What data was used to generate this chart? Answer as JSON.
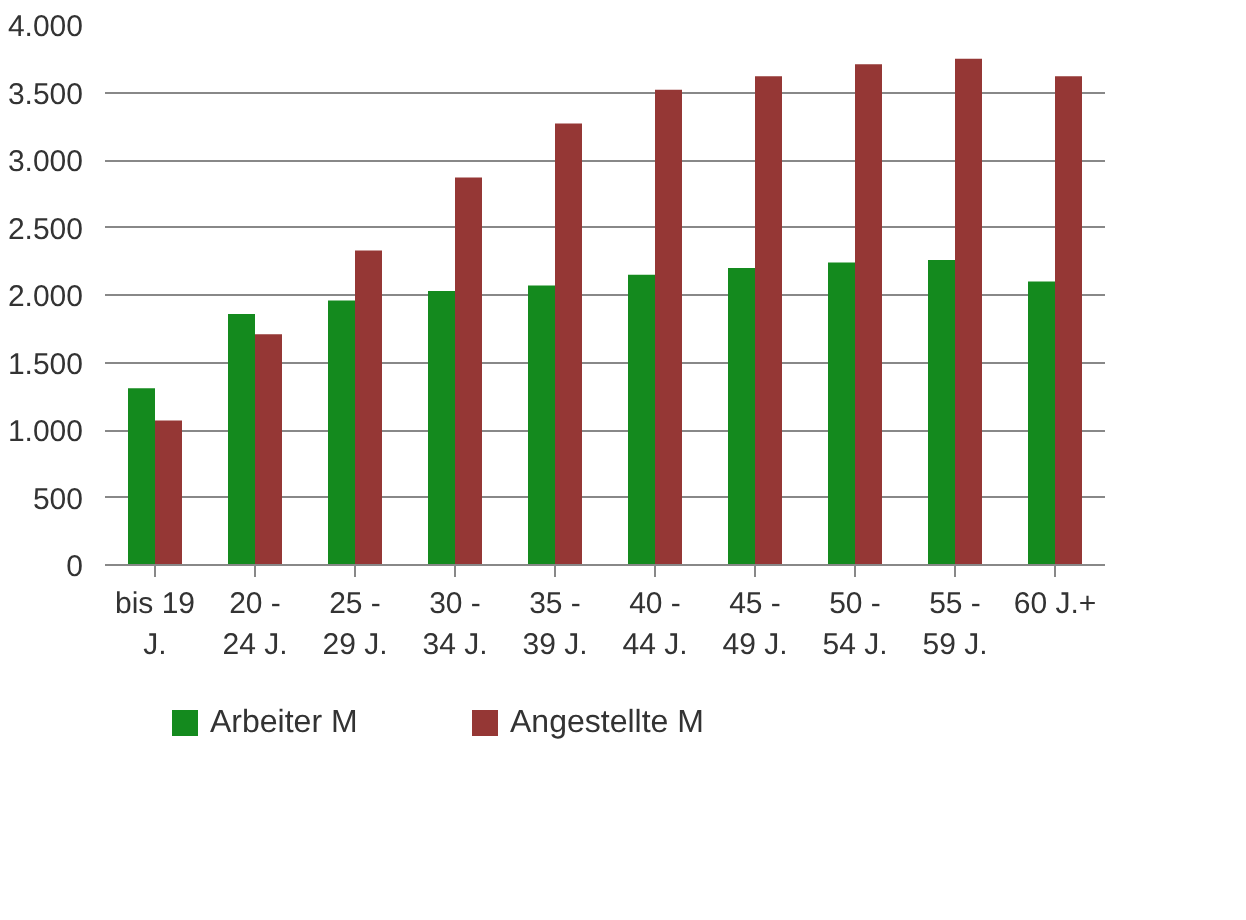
{
  "chart_data": {
    "type": "bar",
    "categories": [
      "bis 19 J.",
      "20 - 24 J.",
      "25 - 29 J.",
      "30 - 34 J.",
      "35 - 39 J.",
      "40 - 44 J.",
      "45 - 49 J.",
      "50 - 54 J.",
      "55 - 59 J.",
      "60 J.+"
    ],
    "series": [
      {
        "name": "Arbeiter M",
        "color": "#148a1e",
        "values": [
          1310,
          1860,
          1960,
          2030,
          2070,
          2150,
          2200,
          2240,
          2260,
          2100
        ]
      },
      {
        "name": "Angestellte M",
        "color": "#953735",
        "values": [
          1070,
          1710,
          2330,
          2870,
          3270,
          3520,
          3620,
          3710,
          3750,
          3620
        ]
      }
    ],
    "ylim": [
      0,
      4000
    ],
    "yticks": [
      {
        "value": 0,
        "label": "0"
      },
      {
        "value": 500,
        "label": "500"
      },
      {
        "value": 1000,
        "label": "1.000"
      },
      {
        "value": 1500,
        "label": "1.500"
      },
      {
        "value": 2000,
        "label": "2.000"
      },
      {
        "value": 2500,
        "label": "2.500"
      },
      {
        "value": 3000,
        "label": "3.000"
      },
      {
        "value": 3500,
        "label": "3.500"
      },
      {
        "value": 4000,
        "label": "4.000"
      }
    ],
    "grid": "y",
    "legend": "bottom"
  }
}
